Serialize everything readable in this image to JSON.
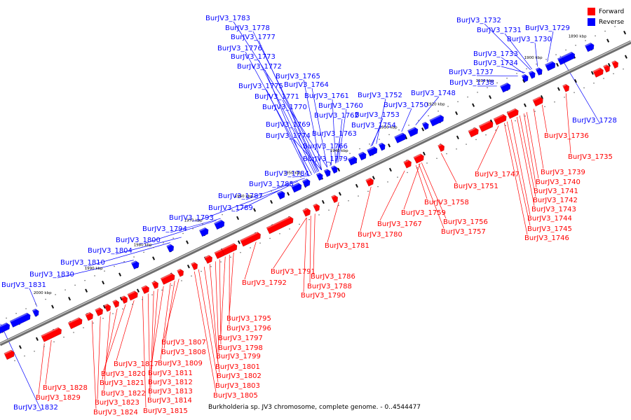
{
  "caption": "Burkholderia sp. JV3 chromosome, complete genome. - 0..4544477",
  "legend": [
    {
      "label": "Forward",
      "color": "#ff0000"
    },
    {
      "label": "Reverse",
      "color": "#0000ff"
    }
  ],
  "colors": {
    "forward": "#ff0000",
    "reverse": "#0000ff",
    "axis": "#8a8a8a"
  },
  "scale": {
    "unit": "kbp",
    "ticks": [
      {
        "kbp": 1890,
        "label": "1890 kbp"
      },
      {
        "kbp": 1900,
        "label": "1900 kbp"
      },
      {
        "kbp": 1910,
        "label": "1910 kbp"
      },
      {
        "kbp": 1920,
        "label": "1920 kbp"
      },
      {
        "kbp": 1930,
        "label": "1930 kbp"
      },
      {
        "kbp": 1940,
        "label": "1940 kbp"
      },
      {
        "kbp": 1950,
        "label": "1950 kbp"
      },
      {
        "kbp": 1960,
        "label": "1960 kbp"
      },
      {
        "kbp": 1970,
        "label": "1970 kbp"
      },
      {
        "kbp": 1980,
        "label": "1980 kbp"
      },
      {
        "kbp": 1990,
        "label": "1990 kbp"
      },
      {
        "kbp": 2000,
        "label": "2000 kbp"
      }
    ]
  },
  "reverse_genes": [
    "BurJV3_1783",
    "BurJV3_1778",
    "BurJV3_1777",
    "BurJV3_1776",
    "BurJV3_1773",
    "BurJV3_1772",
    "BurJV3_1765",
    "BurJV3_1775",
    "BurJV3_1764",
    "BurJV3_1771",
    "BurJV3_1761",
    "BurJV3_1770",
    "BurJV3_1760",
    "BurJV3_1769",
    "BurJV3_1762",
    "BurJV3_1774",
    "BurJV3_1763",
    "BurJV3_1766",
    "BurJV3_1779",
    "BurJV3_1784",
    "BurJV3_1785",
    "BurJV3_1787",
    "BurJV3_1789",
    "BurJV3_1793",
    "BurJV3_1794",
    "BurJV3_1800",
    "BurJV3_1804",
    "BurJV3_1810",
    "BurJV3_1830",
    "BurJV3_1831",
    "BurJV3_1832",
    "BurJV3_1752",
    "BurJV3_1753",
    "BurJV3_1754",
    "BurJV3_1750",
    "BurJV3_1748",
    "BurJV3_1738",
    "BurJV3_1737",
    "BurJV3_1734",
    "BurJV3_1733",
    "BurJV3_1732",
    "BurJV3_1731",
    "BurJV3_1730",
    "BurJV3_1729",
    "BurJV3_1728"
  ],
  "forward_genes": [
    "BurJV3_1736",
    "BurJV3_1735",
    "BurJV3_1739",
    "BurJV3_1747",
    "BurJV3_1740",
    "BurJV3_1741",
    "BurJV3_1751",
    "BurJV3_1742",
    "BurJV3_1743",
    "BurJV3_1744",
    "BurJV3_1745",
    "BurJV3_1746",
    "BurJV3_1758",
    "BurJV3_1759",
    "BurJV3_1756",
    "BurJV3_1757",
    "BurJV3_1767",
    "BurJV3_1780",
    "BurJV3_1781",
    "BurJV3_1791",
    "BurJV3_1792",
    "BurJV3_1786",
    "BurJV3_1788",
    "BurJV3_1790",
    "BurJV3_1795",
    "BurJV3_1796",
    "BurJV3_1797",
    "BurJV3_1798",
    "BurJV3_1799",
    "BurJV3_1801",
    "BurJV3_1802",
    "BurJV3_1803",
    "BurJV3_1805",
    "BurJV3_1807",
    "BurJV3_1808",
    "BurJV3_1809",
    "BurJV3_1811",
    "BurJV3_1812",
    "BurJV3_1813",
    "BurJV3_1814",
    "BurJV3_1815",
    "BurJV3_1817",
    "BurJV3_1820",
    "BurJV3_1821",
    "BurJV3_1822",
    "BurJV3_1823",
    "BurJV3_1824",
    "BurJV3_1828",
    "BurJV3_1829"
  ]
}
